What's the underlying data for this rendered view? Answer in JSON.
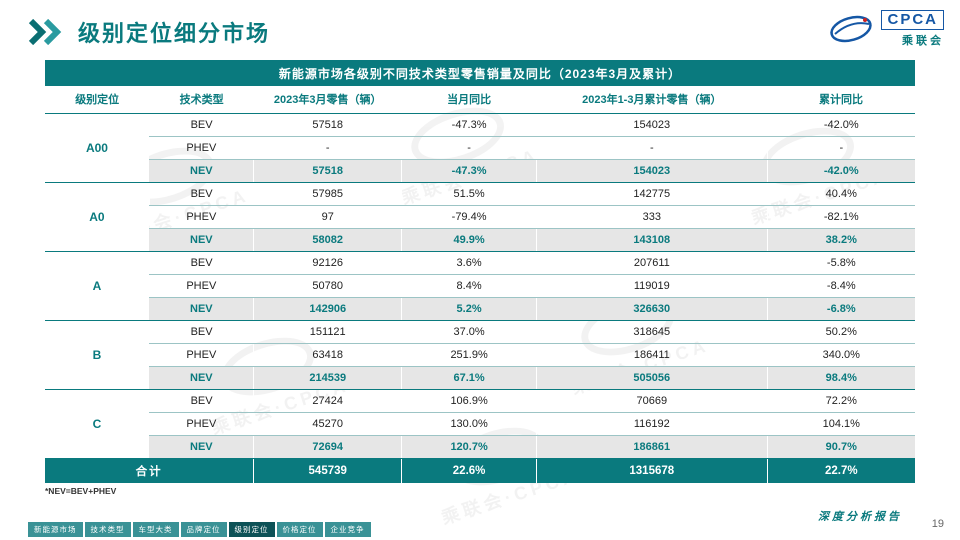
{
  "header": {
    "title": "级别定位细分市场"
  },
  "logo": {
    "acronym": "CPCA",
    "name": "乘联会"
  },
  "watermark": {
    "text": "乘联会·CPCA"
  },
  "table": {
    "title": "新能源市场各级别不同技术类型零售销量及同比（2023年3月及累计）",
    "columns": [
      "级别定位",
      "技术类型",
      "2023年3月零售（辆）",
      "当月同比",
      "2023年1-3月累计零售（辆）",
      "累计同比"
    ],
    "groups": [
      {
        "level": "A00",
        "rows": [
          {
            "type": "BEV",
            "monthly": "57518",
            "mom": "-47.3%",
            "cum": "154023",
            "cum_yoy": "-42.0%"
          },
          {
            "type": "PHEV",
            "monthly": "-",
            "mom": "-",
            "cum": "-",
            "cum_yoy": "-"
          },
          {
            "type": "NEV",
            "monthly": "57518",
            "mom": "-47.3%",
            "cum": "154023",
            "cum_yoy": "-42.0%"
          }
        ]
      },
      {
        "level": "A0",
        "rows": [
          {
            "type": "BEV",
            "monthly": "57985",
            "mom": "51.5%",
            "cum": "142775",
            "cum_yoy": "40.4%"
          },
          {
            "type": "PHEV",
            "monthly": "97",
            "mom": "-79.4%",
            "cum": "333",
            "cum_yoy": "-82.1%"
          },
          {
            "type": "NEV",
            "monthly": "58082",
            "mom": "49.9%",
            "cum": "143108",
            "cum_yoy": "38.2%"
          }
        ]
      },
      {
        "level": "A",
        "rows": [
          {
            "type": "BEV",
            "monthly": "92126",
            "mom": "3.6%",
            "cum": "207611",
            "cum_yoy": "-5.8%"
          },
          {
            "type": "PHEV",
            "monthly": "50780",
            "mom": "8.4%",
            "cum": "119019",
            "cum_yoy": "-8.4%"
          },
          {
            "type": "NEV",
            "monthly": "142906",
            "mom": "5.2%",
            "cum": "326630",
            "cum_yoy": "-6.8%"
          }
        ]
      },
      {
        "level": "B",
        "rows": [
          {
            "type": "BEV",
            "monthly": "151121",
            "mom": "37.0%",
            "cum": "318645",
            "cum_yoy": "50.2%"
          },
          {
            "type": "PHEV",
            "monthly": "63418",
            "mom": "251.9%",
            "cum": "186411",
            "cum_yoy": "340.0%"
          },
          {
            "type": "NEV",
            "monthly": "214539",
            "mom": "67.1%",
            "cum": "505056",
            "cum_yoy": "98.4%"
          }
        ]
      },
      {
        "level": "C",
        "rows": [
          {
            "type": "BEV",
            "monthly": "27424",
            "mom": "106.9%",
            "cum": "70669",
            "cum_yoy": "72.2%"
          },
          {
            "type": "PHEV",
            "monthly": "45270",
            "mom": "130.0%",
            "cum": "116192",
            "cum_yoy": "104.1%"
          },
          {
            "type": "NEV",
            "monthly": "72694",
            "mom": "120.7%",
            "cum": "186861",
            "cum_yoy": "90.7%"
          }
        ]
      }
    ],
    "total": {
      "label": "合计",
      "monthly": "545739",
      "mom": "22.6%",
      "cum": "1315678",
      "cum_yoy": "22.7%"
    }
  },
  "footnote": "*NEV=BEV+PHEV",
  "footer": {
    "tabs": [
      {
        "label": "新能源市场",
        "active": false
      },
      {
        "label": "技术类型",
        "active": false
      },
      {
        "label": "车型大类",
        "active": false
      },
      {
        "label": "品牌定位",
        "active": false
      },
      {
        "label": "级别定位",
        "active": true
      },
      {
        "label": "价格定位",
        "active": false
      },
      {
        "label": "企业竞争",
        "active": false
      }
    ],
    "note": "深度分析报告",
    "page": "19"
  },
  "colors": {
    "teal": "#0a7a7e",
    "logo_blue": "#1557a5"
  }
}
